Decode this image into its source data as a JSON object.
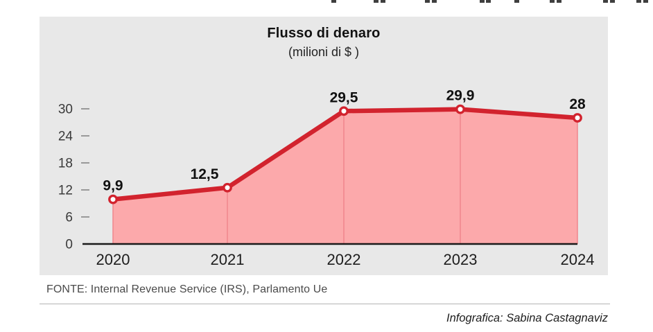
{
  "page": {
    "background": "#ffffff",
    "panel_background": "#e8e8e8"
  },
  "top_cropped_text_marks": {
    "color": "#3f3f3f",
    "positions_x": [
      478,
      539,
      549,
      613,
      623,
      692,
      701,
      742,
      793,
      803,
      870,
      880,
      918,
      928
    ]
  },
  "chart_data": {
    "type": "area",
    "title": "Flusso di denaro",
    "subtitle": "(milioni di $ )",
    "categories": [
      "2020",
      "2021",
      "2022",
      "2023",
      "2024"
    ],
    "values": [
      9.9,
      12.5,
      29.5,
      29.9,
      28
    ],
    "value_labels": [
      "9,9",
      "12,5",
      "29,5",
      "29,9",
      "28"
    ],
    "yticks": [
      0,
      6,
      12,
      18,
      24,
      30
    ],
    "ylim": [
      0,
      30
    ],
    "grid": false,
    "legend": "none",
    "label_dx": [
      0,
      -33,
      0,
      0,
      0
    ],
    "colors": {
      "line": "#d2232e",
      "fill": "#fca9ab",
      "drop_line": "#f0868c",
      "marker_fill": "#ffffff",
      "marker_stroke": "#d2232e",
      "axis": "#1a1a1a",
      "tick": "#999999"
    }
  },
  "footer": {
    "source": "FONTE: Internal Revenue Service (IRS), Parlamento Ue",
    "credit": "Infografica: Sabina Castagnaviz"
  }
}
